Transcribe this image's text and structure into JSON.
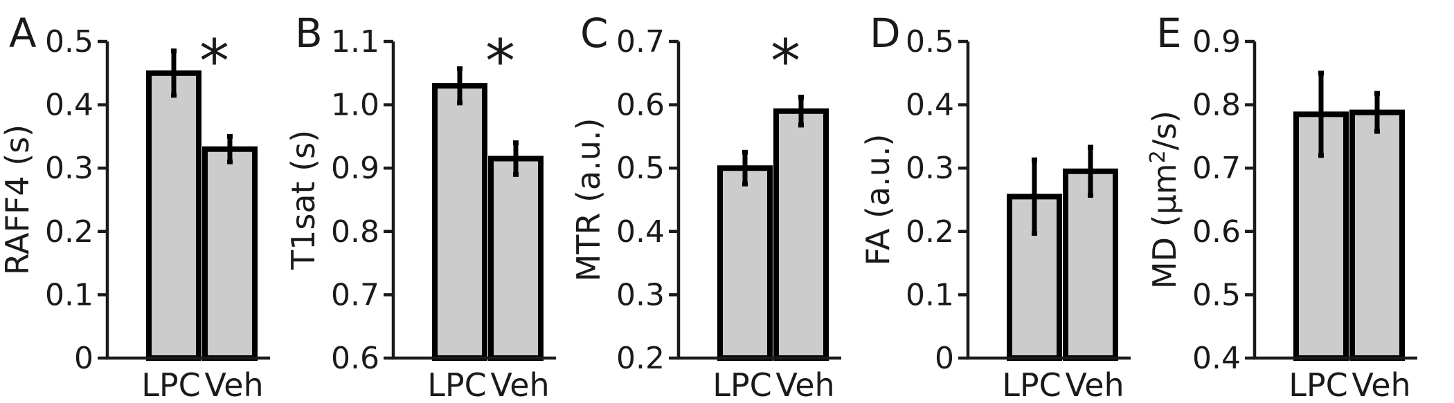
{
  "chart_data": [
    {
      "type": "bar",
      "panel": "A",
      "categories": [
        "LPC",
        "Veh"
      ],
      "values": [
        0.45,
        0.33
      ],
      "errors": [
        0.035,
        0.02
      ],
      "ylabel": "RAFF4 (s)",
      "ylim": [
        0,
        0.5
      ],
      "yticks": [
        0,
        0.1,
        0.2,
        0.3,
        0.4,
        0.5
      ],
      "ytick_labels": [
        "0",
        "0.1",
        "0.2",
        "0.3",
        "0.4",
        "0.5"
      ],
      "significance": "*"
    },
    {
      "type": "bar",
      "panel": "B",
      "categories": [
        "LPC",
        "Veh"
      ],
      "values": [
        1.03,
        0.915
      ],
      "errors": [
        0.027,
        0.025
      ],
      "ylabel": "T1sat (s)",
      "ylim": [
        0.6,
        1.1
      ],
      "yticks": [
        0.6,
        0.7,
        0.8,
        0.9,
        1.0,
        1.1
      ],
      "ytick_labels": [
        "0.6",
        "0.7",
        "0.8",
        "0.9",
        "1.0",
        "1.1"
      ],
      "significance": "*"
    },
    {
      "type": "bar",
      "panel": "C",
      "categories": [
        "LPC",
        "Veh"
      ],
      "values": [
        0.5,
        0.59
      ],
      "errors": [
        0.025,
        0.022
      ],
      "ylabel": "MTR (a.u.)",
      "ylim": [
        0.2,
        0.7
      ],
      "yticks": [
        0.2,
        0.3,
        0.4,
        0.5,
        0.6,
        0.7
      ],
      "ytick_labels": [
        "0.2",
        "0.3",
        "0.4",
        "0.5",
        "0.6",
        "0.7"
      ],
      "significance": "*"
    },
    {
      "type": "bar",
      "panel": "D",
      "categories": [
        "LPC",
        "Veh"
      ],
      "values": [
        0.255,
        0.295
      ],
      "errors": [
        0.058,
        0.038
      ],
      "ylabel": "FA (a.u.)",
      "ylim": [
        0,
        0.5
      ],
      "yticks": [
        0,
        0.1,
        0.2,
        0.3,
        0.4,
        0.5
      ],
      "ytick_labels": [
        "0",
        "0.1",
        "0.2",
        "0.3",
        "0.4",
        "0.5"
      ],
      "significance": ""
    },
    {
      "type": "bar",
      "panel": "E",
      "categories": [
        "LPC",
        "Veh"
      ],
      "values": [
        0.785,
        0.788
      ],
      "errors": [
        0.065,
        0.03
      ],
      "ylabel": "MD (µm²/s)",
      "ylabel_parts": [
        "MD (µm",
        "2",
        "/s)"
      ],
      "ylim": [
        0.4,
        0.9
      ],
      "yticks": [
        0.4,
        0.5,
        0.6,
        0.7,
        0.8,
        0.9
      ],
      "ytick_labels": [
        "0.4",
        "0.5",
        "0.6",
        "0.7",
        "0.8",
        "0.9"
      ],
      "significance": ""
    }
  ]
}
